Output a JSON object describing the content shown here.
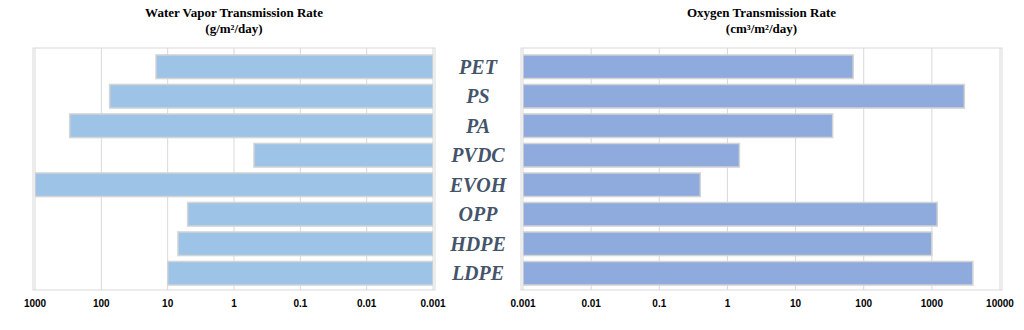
{
  "chart_data": [
    {
      "type": "bar",
      "title": "Water Vapor Transmission Rate\n(g/m²/day)",
      "orientation": "horizontal",
      "categories": [
        "PET",
        "PS",
        "PA",
        "PVDC",
        "EVOH",
        "OPP",
        "HDPE",
        "LDPE"
      ],
      "values": [
        15,
        75,
        300,
        0.5,
        1000,
        5,
        7,
        10
      ],
      "color": "#9dc3e6",
      "xlim": [
        1000,
        0.001
      ],
      "xticks": [
        1000,
        100,
        10,
        1,
        0.1,
        0.01,
        0.001
      ],
      "log": "x",
      "grid": true
    },
    {
      "type": "bar",
      "title": "Oxygen Transmission Rate\n(cm³/m²/day)",
      "orientation": "horizontal",
      "categories": [
        "PET",
        "PS",
        "PA",
        "PVDC",
        "EVOH",
        "OPP",
        "HDPE",
        "LDPE"
      ],
      "values": [
        70,
        3000,
        35,
        1.5,
        0.4,
        1200,
        1000,
        4000
      ],
      "color": "#8faadc",
      "xlim": [
        0.001,
        10000
      ],
      "xticks": [
        0.001,
        0.01,
        0.1,
        1,
        10,
        100,
        1000,
        10000
      ],
      "log": "x",
      "grid": true
    }
  ]
}
